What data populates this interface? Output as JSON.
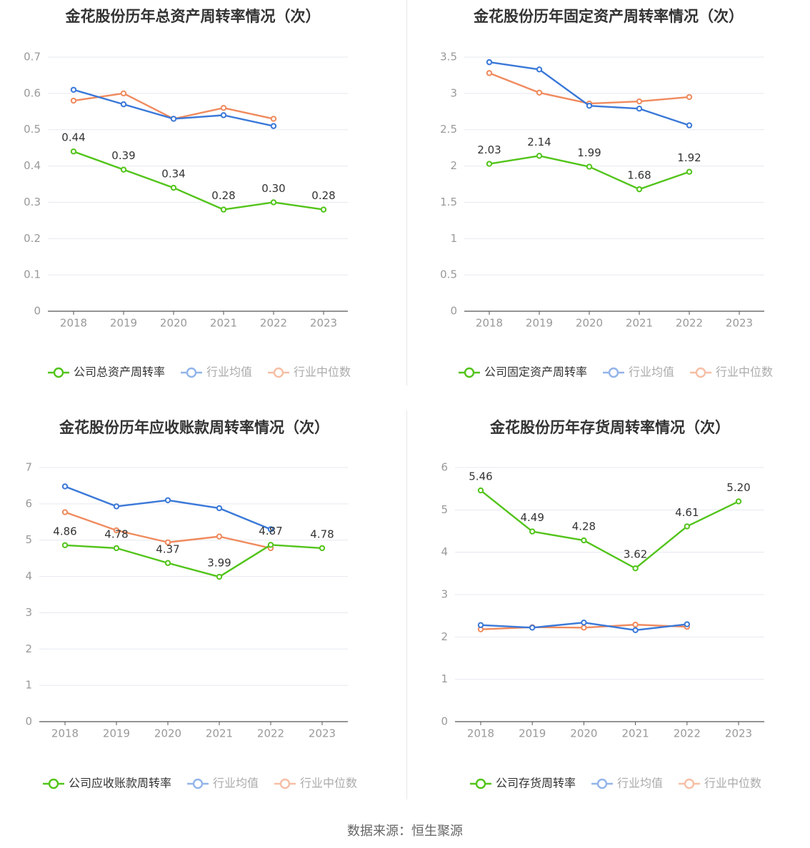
{
  "colors": {
    "company": "#52c41a",
    "avg": "#3a78d8",
    "median": "#f08a5d",
    "grid": "#e6e8f0",
    "axis": "#555555",
    "text": "#333333",
    "tick": "#999999"
  },
  "legend_labels": {
    "avg": "行业均值",
    "median": "行业中位数"
  },
  "source": "数据来源：恒生聚源",
  "chart_data": [
    {
      "type": "line",
      "title": "金花股份历年总资产周转率情况（次）",
      "categories": [
        "2018",
        "2019",
        "2020",
        "2021",
        "2022",
        "2023"
      ],
      "ylim": [
        0,
        0.7
      ],
      "yticks": [
        "0",
        "0.1",
        "0.2",
        "0.3",
        "0.4",
        "0.5",
        "0.6",
        "0.7"
      ],
      "grid": true,
      "legend_position": "bottom",
      "series": [
        {
          "name": "公司总资产周转率",
          "role": "company",
          "values": [
            0.44,
            0.39,
            0.34,
            0.28,
            0.3,
            0.28
          ],
          "labels": [
            "0.44",
            "0.39",
            "0.34",
            "0.28",
            "0.30",
            "0.28"
          ]
        },
        {
          "name": "行业均值",
          "role": "avg",
          "values": [
            0.61,
            0.57,
            0.53,
            0.54,
            0.51,
            null
          ]
        },
        {
          "name": "行业中位数",
          "role": "median",
          "values": [
            0.58,
            0.6,
            0.53,
            0.56,
            0.53,
            null
          ]
        }
      ]
    },
    {
      "type": "line",
      "title": "金花股份历年固定资产周转率情况（次）",
      "categories": [
        "2018",
        "2019",
        "2020",
        "2021",
        "2022",
        "2023"
      ],
      "ylim": [
        0,
        3.5
      ],
      "yticks": [
        "0",
        "0.5",
        "1",
        "1.5",
        "2",
        "2.5",
        "3",
        "3.5"
      ],
      "grid": true,
      "legend_position": "bottom",
      "series": [
        {
          "name": "公司固定资产周转率",
          "role": "company",
          "values": [
            2.03,
            2.14,
            1.99,
            1.68,
            1.92,
            null
          ],
          "labels": [
            "2.03",
            "2.14",
            "1.99",
            "1.68",
            "1.92",
            ""
          ]
        },
        {
          "name": "行业均值",
          "role": "avg",
          "values": [
            3.43,
            3.33,
            2.83,
            2.79,
            2.56,
            null
          ]
        },
        {
          "name": "行业中位数",
          "role": "median",
          "values": [
            3.28,
            3.01,
            2.86,
            2.89,
            2.95,
            null
          ]
        }
      ]
    },
    {
      "type": "line",
      "title": "金花股份历年应收账款周转率情况（次）",
      "categories": [
        "2018",
        "2019",
        "2020",
        "2021",
        "2022",
        "2023"
      ],
      "ylim": [
        0,
        7
      ],
      "yticks": [
        "0",
        "1",
        "2",
        "3",
        "4",
        "5",
        "6",
        "7"
      ],
      "grid": true,
      "legend_position": "bottom",
      "series": [
        {
          "name": "公司应收账款周转率",
          "role": "company",
          "values": [
            4.86,
            4.78,
            4.37,
            3.99,
            4.87,
            4.78
          ],
          "labels": [
            "4.86",
            "4.78",
            "4.37",
            "3.99",
            "4.87",
            "4.78"
          ]
        },
        {
          "name": "行业均值",
          "role": "avg",
          "values": [
            6.48,
            5.93,
            6.1,
            5.88,
            5.3,
            null
          ]
        },
        {
          "name": "行业中位数",
          "role": "median",
          "values": [
            5.77,
            5.27,
            4.94,
            5.1,
            4.78,
            null
          ]
        }
      ]
    },
    {
      "type": "line",
      "title": "金花股份历年存货周转率情况（次）",
      "categories": [
        "2018",
        "2019",
        "2020",
        "2021",
        "2022",
        "2023"
      ],
      "ylim": [
        0,
        6
      ],
      "yticks": [
        "0",
        "1",
        "2",
        "3",
        "4",
        "5",
        "6"
      ],
      "grid": true,
      "legend_position": "bottom",
      "series": [
        {
          "name": "公司存货周转率",
          "role": "company",
          "values": [
            5.46,
            4.49,
            4.28,
            3.62,
            4.61,
            5.2
          ],
          "labels": [
            "5.46",
            "4.49",
            "4.28",
            "3.62",
            "4.61",
            "5.20"
          ]
        },
        {
          "name": "行业均值",
          "role": "avg",
          "values": [
            2.28,
            2.22,
            2.34,
            2.16,
            2.3,
            null
          ]
        },
        {
          "name": "行业中位数",
          "role": "median",
          "values": [
            2.18,
            2.23,
            2.22,
            2.29,
            2.24,
            null
          ]
        }
      ]
    }
  ]
}
